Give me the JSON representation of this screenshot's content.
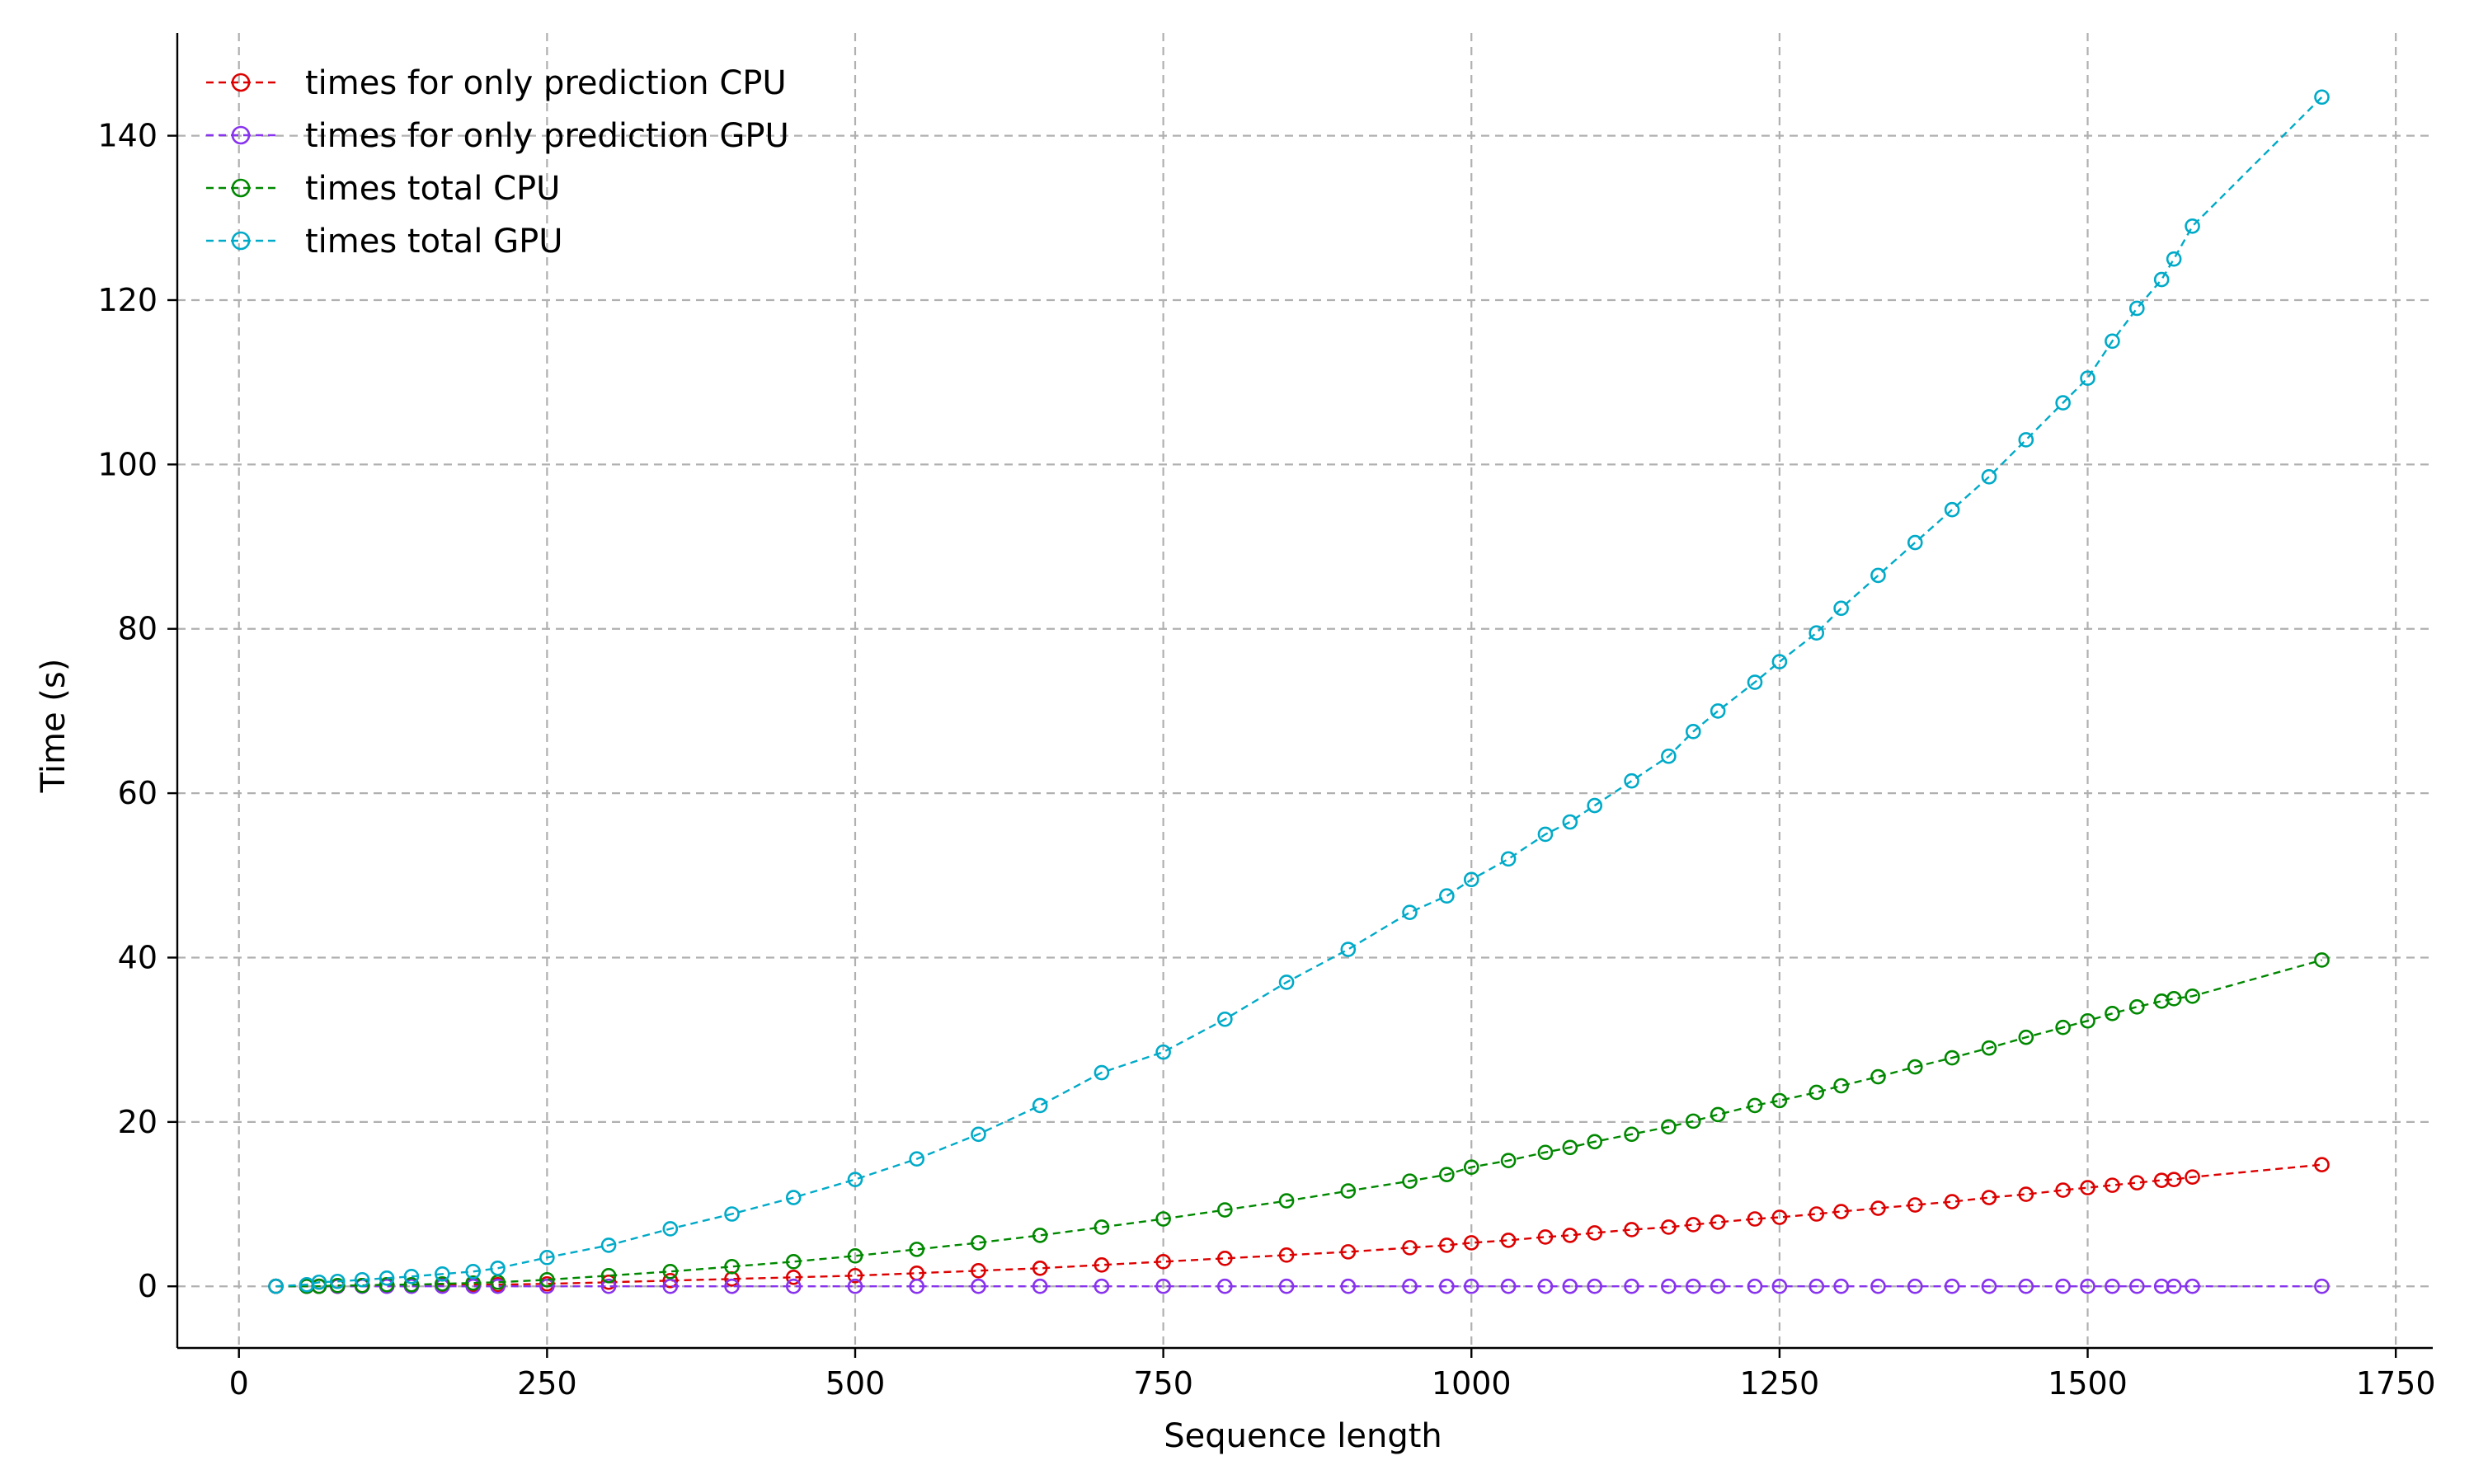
{
  "chart_data": {
    "type": "line",
    "xlabel": "Sequence length",
    "ylabel": "Time (s)",
    "xlim": [
      -50,
      1780
    ],
    "ylim": [
      -7.5,
      152.5
    ],
    "x_ticks": [
      0,
      250,
      500,
      750,
      1000,
      1250,
      1500,
      1750
    ],
    "y_ticks": [
      0,
      20,
      40,
      60,
      80,
      100,
      120,
      140
    ],
    "grid": true,
    "legend_position": "top-left",
    "line_style": "dashed",
    "marker": "open-circle",
    "x": [
      30,
      55,
      65,
      80,
      100,
      120,
      140,
      165,
      190,
      210,
      250,
      300,
      350,
      400,
      450,
      500,
      550,
      600,
      650,
      700,
      750,
      800,
      850,
      900,
      950,
      980,
      1000,
      1030,
      1060,
      1080,
      1100,
      1130,
      1160,
      1180,
      1200,
      1230,
      1250,
      1280,
      1300,
      1330,
      1360,
      1390,
      1420,
      1450,
      1480,
      1500,
      1520,
      1540,
      1560,
      1570,
      1585,
      1690
    ],
    "series": [
      {
        "name": "times for only prediction CPU",
        "color": "#dd0000",
        "values": [
          0.0,
          0.0,
          0.0,
          0.0,
          0.1,
          0.1,
          0.1,
          0.2,
          0.2,
          0.2,
          0.3,
          0.5,
          0.7,
          0.9,
          1.1,
          1.3,
          1.6,
          1.9,
          2.2,
          2.6,
          3.0,
          3.4,
          3.8,
          4.2,
          4.7,
          5.0,
          5.3,
          5.6,
          6.0,
          6.2,
          6.5,
          6.9,
          7.2,
          7.5,
          7.8,
          8.2,
          8.4,
          8.8,
          9.1,
          9.5,
          9.9,
          10.3,
          10.8,
          11.2,
          11.7,
          12.0,
          12.3,
          12.6,
          12.9,
          13.0,
          13.3,
          14.8
        ]
      },
      {
        "name": "times for only prediction GPU",
        "color": "#8833ee",
        "values": [
          0.0,
          0.0,
          0.0,
          0.0,
          0.0,
          0.0,
          0.0,
          0.0,
          0.0,
          0.0,
          0.0,
          0.0,
          0.0,
          0.0,
          0.0,
          0.0,
          0.0,
          0.0,
          0.0,
          0.0,
          0.0,
          0.0,
          0.0,
          0.0,
          0.0,
          0.0,
          0.0,
          0.0,
          0.0,
          0.0,
          0.0,
          0.0,
          0.0,
          0.0,
          0.0,
          0.0,
          0.0,
          0.0,
          0.0,
          0.0,
          0.0,
          0.0,
          0.0,
          0.0,
          0.0,
          0.0,
          0.0,
          0.0,
          0.0,
          0.0,
          0.0,
          0.0
        ]
      },
      {
        "name": "times total CPU",
        "color": "#008800",
        "values": [
          0.0,
          0.0,
          0.0,
          0.1,
          0.1,
          0.2,
          0.2,
          0.3,
          0.4,
          0.5,
          0.8,
          1.3,
          1.8,
          2.4,
          3.0,
          3.7,
          4.5,
          5.3,
          6.2,
          7.2,
          8.2,
          9.3,
          10.4,
          11.6,
          12.8,
          13.6,
          14.5,
          15.3,
          16.3,
          16.9,
          17.6,
          18.5,
          19.4,
          20.1,
          20.9,
          22.0,
          22.6,
          23.6,
          24.4,
          25.5,
          26.7,
          27.8,
          29.0,
          30.3,
          31.5,
          32.3,
          33.2,
          34.0,
          34.7,
          35.0,
          35.3,
          39.7
        ]
      },
      {
        "name": "times total GPU",
        "color": "#00aac8",
        "values": [
          0.0,
          0.2,
          0.5,
          0.6,
          0.8,
          1.0,
          1.2,
          1.5,
          1.8,
          2.2,
          3.5,
          5.0,
          7.0,
          8.8,
          10.8,
          13.0,
          15.5,
          18.5,
          22.0,
          26.0,
          28.5,
          32.5,
          37.0,
          41.0,
          45.5,
          47.5,
          49.5,
          52.0,
          55.0,
          56.5,
          58.5,
          61.5,
          64.5,
          67.5,
          70.0,
          73.5,
          76.0,
          79.5,
          82.5,
          86.5,
          90.5,
          94.5,
          98.5,
          103.0,
          107.5,
          110.5,
          115.0,
          119.0,
          122.5,
          125.0,
          129.0,
          144.7
        ]
      }
    ]
  }
}
